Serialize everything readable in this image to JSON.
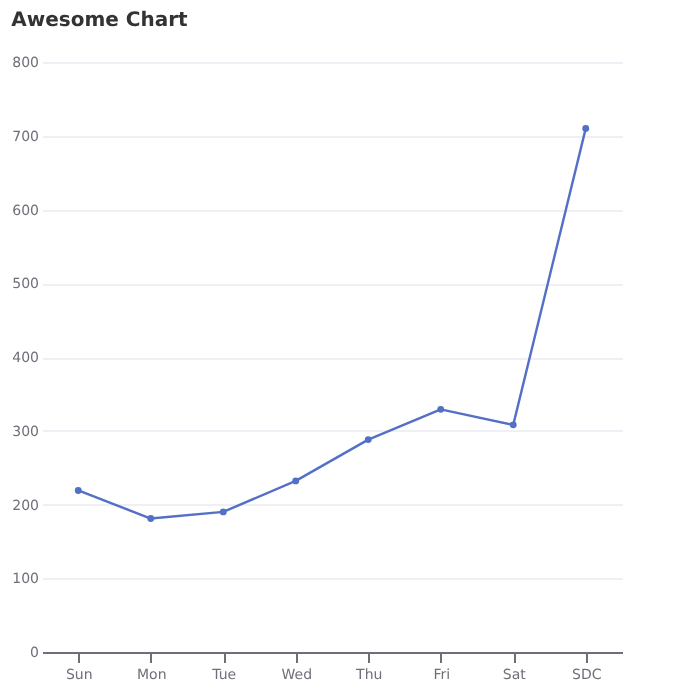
{
  "chart_data": {
    "type": "line",
    "title": "Awesome Chart",
    "categories": [
      "Sun",
      "Mon",
      "Tue",
      "Wed",
      "Thu",
      "Fri",
      "Sat",
      "SDC"
    ],
    "series": [
      {
        "color": "#5470c6",
        "values": [
          219,
          181,
          190,
          232,
          288,
          329,
          308,
          710
        ]
      }
    ],
    "ylim": [
      0,
      800
    ],
    "yticks": [
      0,
      100,
      200,
      300,
      400,
      500,
      600,
      700,
      800
    ],
    "grid": "y",
    "marker": "circle",
    "line_style": "solid"
  }
}
